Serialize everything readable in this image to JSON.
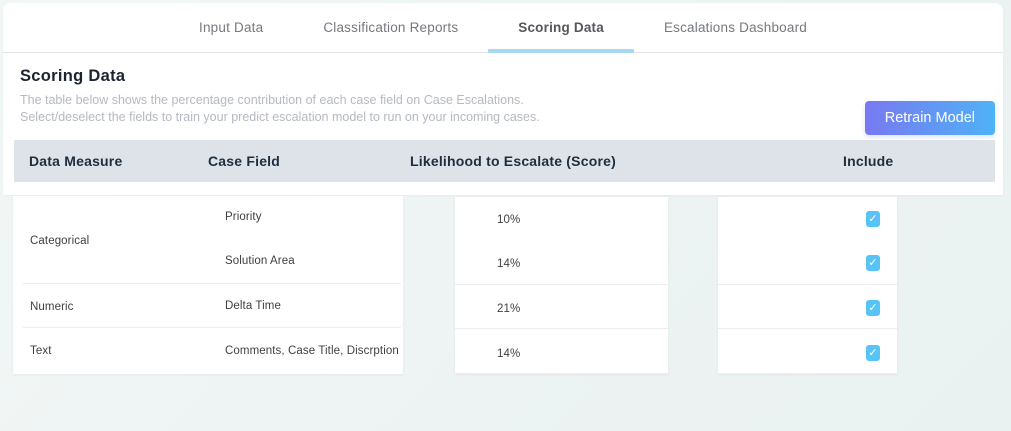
{
  "tabs": [
    {
      "label": "Input Data",
      "active": false
    },
    {
      "label": "Classification Reports",
      "active": false
    },
    {
      "label": "Scoring Data",
      "active": true
    },
    {
      "label": "Escalations Dashboard",
      "active": false
    }
  ],
  "header": {
    "title": "Scoring Data",
    "subtitle_line1": "The table below shows the percentage contribution of each case field on Case Escalations.",
    "subtitle_line2": "Select/deselect the fields to train your predict escalation model to run on your incoming cases.",
    "retrain_button_label": "Retrain Model"
  },
  "table": {
    "columns": {
      "measure": "Data Measure",
      "field": "Case Field",
      "score": "Likelihood to Escalate (Score)",
      "include": "Include"
    },
    "groups": [
      {
        "measure": "Categorical",
        "rows": [
          {
            "field": "Priority",
            "score": "10%",
            "include": true
          },
          {
            "field": "Solution Area",
            "score": "14%",
            "include": true
          }
        ]
      },
      {
        "measure": "Numeric",
        "rows": [
          {
            "field": "Delta Time",
            "score": "21%",
            "include": true
          }
        ]
      },
      {
        "measure": "Text",
        "rows": [
          {
            "field": "Comments, Case Title, Discrption",
            "score": "14%",
            "include": true
          }
        ]
      }
    ]
  },
  "icons": {
    "check": "✓"
  },
  "colors": {
    "header_band": "#dde3e9",
    "active_tab_underline": "#a5d9f1",
    "checkbox": "#57c3f7",
    "button_gradient_start": "#7879f1",
    "button_gradient_end": "#4fb2f6",
    "title_text": "#1c2431",
    "subtitle_text": "#b4b9c2",
    "page_background": "#edf3f3"
  }
}
